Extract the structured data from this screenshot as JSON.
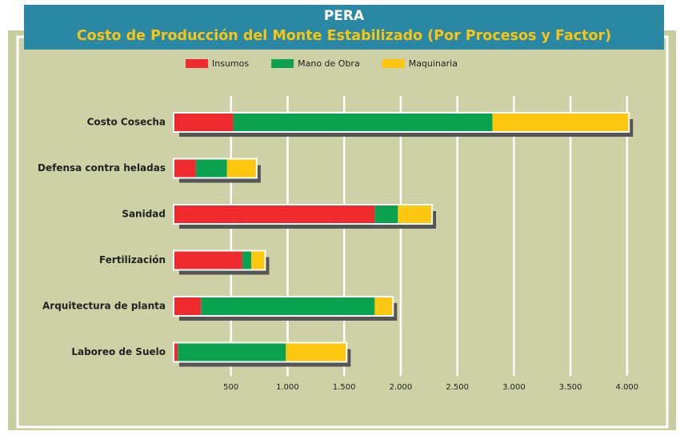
{
  "chart_data": {
    "type": "stacked_barh",
    "title": "PERA",
    "subtitle": "Costo de Producción del Monte Estabilizado (Por Procesos y Factor)",
    "categories": [
      "Costo Cosecha",
      "Defensa contra heladas",
      "Sanidad",
      "Fertilización",
      "Arquitectura de planta",
      "Laboreo de Suelo"
    ],
    "series": [
      {
        "name": "Insumos",
        "color": "#ee2a2e",
        "values": [
          520,
          190,
          1770,
          600,
          235,
          30
        ]
      },
      {
        "name": "Mano de Obra",
        "color": "#0aa24e",
        "values": [
          2290,
          275,
          205,
          80,
          1535,
          955
        ]
      },
      {
        "name": "Maquinaria",
        "color": "#fdc70f",
        "values": [
          1200,
          255,
          295,
          115,
          155,
          530
        ]
      }
    ],
    "xlim": [
      0,
      4100
    ],
    "xticks": [
      500,
      {
        "value": 1000,
        "label": "1.000"
      },
      {
        "value": 1500,
        "label": "1.500"
      },
      {
        "value": 2000,
        "label": "2.000"
      },
      {
        "value": 2500,
        "label": "2.500"
      },
      {
        "value": 3000,
        "label": "3.000"
      },
      {
        "value": 3500,
        "label": "3.500"
      },
      {
        "value": 4000,
        "label": "4.000"
      }
    ],
    "grid": true,
    "legend": "top"
  }
}
